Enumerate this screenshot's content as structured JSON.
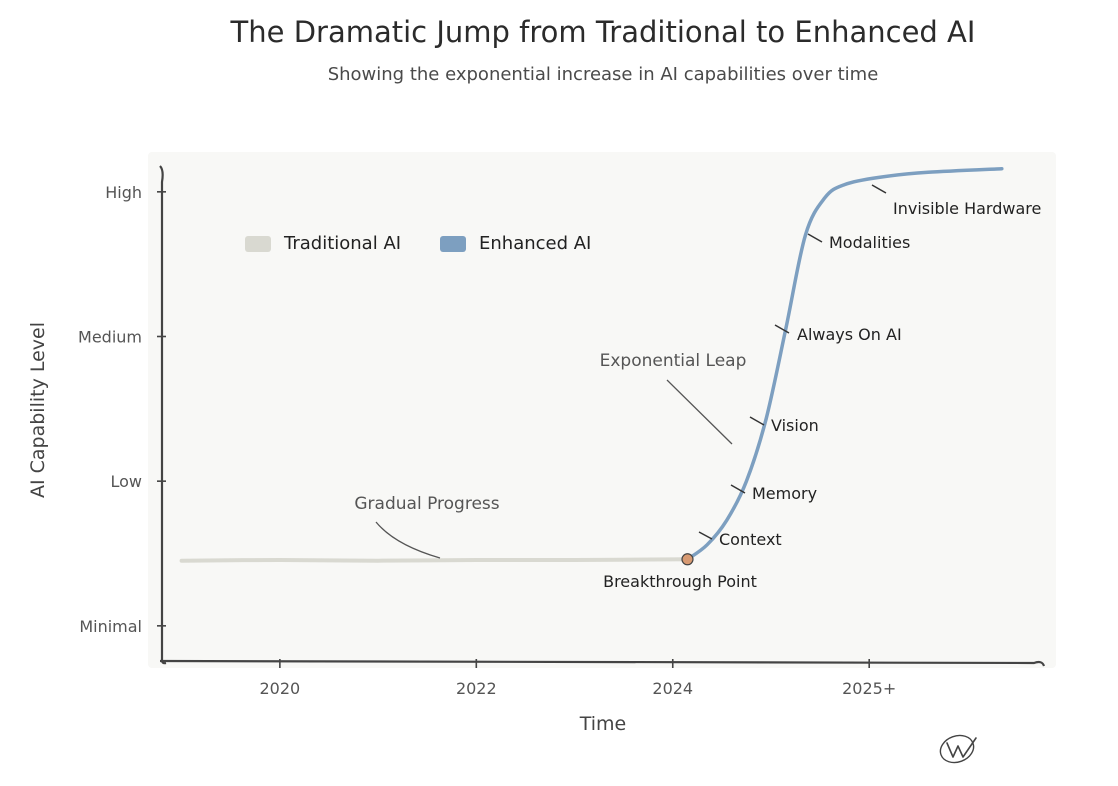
{
  "chart_data": {
    "type": "line",
    "title": "The Dramatic Jump from Traditional to Enhanced AI",
    "subtitle": "Showing the exponential increase in AI capabilities over time",
    "xlabel": "Time",
    "ylabel": "AI Capability Level",
    "x_ticks": [
      {
        "value": 2020,
        "label": "2020"
      },
      {
        "value": 2022,
        "label": "2022"
      },
      {
        "value": 2024,
        "label": "2024"
      },
      {
        "value": 2026,
        "label": "2025+"
      }
    ],
    "y_ticks": [
      {
        "value": 0,
        "label": "Minimal"
      },
      {
        "value": 1,
        "label": "Low"
      },
      {
        "value": 2,
        "label": "Medium"
      },
      {
        "value": 3,
        "label": "High"
      }
    ],
    "xlim": [
      2018.8,
      2027.8
    ],
    "ylim": [
      -0.25,
      3.22
    ],
    "legend": {
      "position": "top-left"
    },
    "series": [
      {
        "name": "Traditional AI",
        "color": "#d9d9d1",
        "points": [
          [
            2019.0,
            0.45
          ],
          [
            2020.0,
            0.455
          ],
          [
            2021.0,
            0.45
          ],
          [
            2022.0,
            0.455
          ],
          [
            2023.0,
            0.455
          ],
          [
            2024.15,
            0.46
          ]
        ]
      },
      {
        "name": "Enhanced AI",
        "color": "#7d9fc0",
        "points": [
          [
            2024.15,
            0.46
          ],
          [
            2024.35,
            0.56
          ],
          [
            2024.55,
            0.73
          ],
          [
            2024.75,
            1.0
          ],
          [
            2024.95,
            1.43
          ],
          [
            2025.15,
            2.05
          ],
          [
            2025.35,
            2.7
          ],
          [
            2025.55,
            2.96
          ],
          [
            2025.75,
            3.05
          ],
          [
            2026.1,
            3.1
          ],
          [
            2026.6,
            3.135
          ],
          [
            2027.35,
            3.16
          ]
        ]
      }
    ],
    "annotations": [
      {
        "text": "Breakthrough Point",
        "x": 2024.15,
        "y": 0.46
      },
      {
        "text": "Gradual Progress",
        "x": 2021.7,
        "y": 0.46
      },
      {
        "text": "Exponential Leap",
        "x": 2024.7,
        "y": 1.27
      },
      {
        "text": "Context",
        "x": 2024.35,
        "y": 0.56
      },
      {
        "text": "Memory",
        "x": 2024.7,
        "y": 0.93
      },
      {
        "text": "Vision",
        "x": 2024.9,
        "y": 1.45
      },
      {
        "text": "Always On AI",
        "x": 2025.1,
        "y": 2.1
      },
      {
        "text": "Modalities",
        "x": 2025.45,
        "y": 2.75
      },
      {
        "text": "Invisible Hardware",
        "x": 2026.1,
        "y": 3.1
      }
    ]
  }
}
